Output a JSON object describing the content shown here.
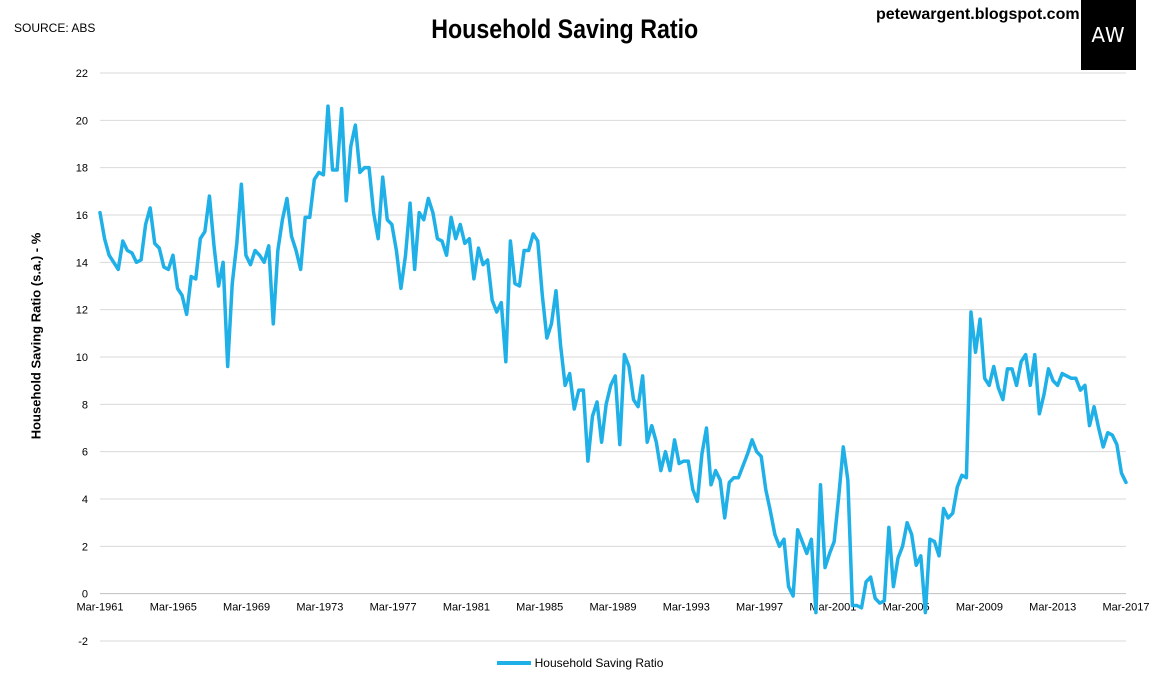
{
  "header": {
    "source": "SOURCE: ABS",
    "title": "Household Saving Ratio",
    "blog": "petewargent.blogspot.com",
    "logo_text": "AW"
  },
  "colors": {
    "line": "#1fb0e8",
    "grid": "#d9d9d9",
    "logo_bg": "#000000"
  },
  "chart_data": {
    "type": "line",
    "title": "Household Saving Ratio",
    "xlabel": "",
    "ylabel": "Household Saving Ratio (s.a.) - %",
    "ylim": [
      -2,
      22
    ],
    "yticks": [
      "-2",
      "0",
      "2",
      "4",
      "6",
      "8",
      "10",
      "12",
      "14",
      "16",
      "18",
      "20",
      "22"
    ],
    "xticks": [
      "Mar-1961",
      "Mar-1965",
      "Mar-1969",
      "Mar-1973",
      "Mar-1977",
      "Mar-1981",
      "Mar-1985",
      "Mar-1989",
      "Mar-1993",
      "Mar-1997",
      "Mar-2001",
      "Mar-2005",
      "Mar-2009",
      "Mar-2013",
      "Mar-2017"
    ],
    "grid": "horizontal",
    "legend": "bottom",
    "series": [
      {
        "name": "Household Saving Ratio",
        "values": [
          16.1,
          15.0,
          14.3,
          14.0,
          13.7,
          14.9,
          14.5,
          14.4,
          14.0,
          14.1,
          15.6,
          16.3,
          14.8,
          14.6,
          13.8,
          13.7,
          14.3,
          12.9,
          12.6,
          11.8,
          13.4,
          13.3,
          15.0,
          15.3,
          16.8,
          14.7,
          13.0,
          14.0,
          9.6,
          13.1,
          14.8,
          17.3,
          14.3,
          13.9,
          14.5,
          14.3,
          14.0,
          14.7,
          11.4,
          14.5,
          15.8,
          16.7,
          15.1,
          14.5,
          13.7,
          15.9,
          15.9,
          17.5,
          17.8,
          17.7,
          20.6,
          17.9,
          17.9,
          20.5,
          16.6,
          18.9,
          19.8,
          17.8,
          18.0,
          18.0,
          16.1,
          15.0,
          17.6,
          15.8,
          15.6,
          14.5,
          12.9,
          14.3,
          16.5,
          13.7,
          16.1,
          15.8,
          16.7,
          16.1,
          15.0,
          14.9,
          14.3,
          15.9,
          15.0,
          15.6,
          14.8,
          15.0,
          13.3,
          14.6,
          13.9,
          14.1,
          12.4,
          11.9,
          12.3,
          9.8,
          14.9,
          13.1,
          13.0,
          14.5,
          14.5,
          15.2,
          14.9,
          12.6,
          10.8,
          11.4,
          12.8,
          10.5,
          8.8,
          9.3,
          7.8,
          8.6,
          8.6,
          5.6,
          7.5,
          8.1,
          6.4,
          8.0,
          8.8,
          9.2,
          6.3,
          10.1,
          9.6,
          8.2,
          7.9,
          9.2,
          6.4,
          7.1,
          6.4,
          5.2,
          6.0,
          5.2,
          6.5,
          5.5,
          5.6,
          5.6,
          4.4,
          3.9,
          5.9,
          7.0,
          4.6,
          5.2,
          4.8,
          3.2,
          4.7,
          4.9,
          4.9,
          5.4,
          5.9,
          6.5,
          6.0,
          5.8,
          4.4,
          3.5,
          2.5,
          2.0,
          2.3,
          0.3,
          -0.1,
          2.7,
          2.2,
          1.7,
          2.3,
          -0.8,
          4.6,
          1.1,
          1.7,
          2.2,
          4.1,
          6.2,
          4.8,
          -0.5,
          -0.5,
          -0.6,
          0.5,
          0.7,
          -0.2,
          -0.4,
          -0.3,
          2.8,
          0.3,
          1.5,
          2.0,
          3.0,
          2.5,
          1.2,
          1.6,
          -0.8,
          2.3,
          2.2,
          1.6,
          3.6,
          3.2,
          3.4,
          4.5,
          5.0,
          4.9,
          11.9,
          10.2,
          11.6,
          9.1,
          8.8,
          9.6,
          8.7,
          8.2,
          9.5,
          9.5,
          8.8,
          9.8,
          10.1,
          8.8,
          10.1,
          7.6,
          8.4,
          9.5,
          9.0,
          8.8,
          9.3,
          9.2,
          9.1,
          9.1,
          8.6,
          8.8,
          7.1,
          7.9,
          7.0,
          6.2,
          6.8,
          6.7,
          6.3,
          5.1,
          4.7
        ]
      }
    ]
  }
}
